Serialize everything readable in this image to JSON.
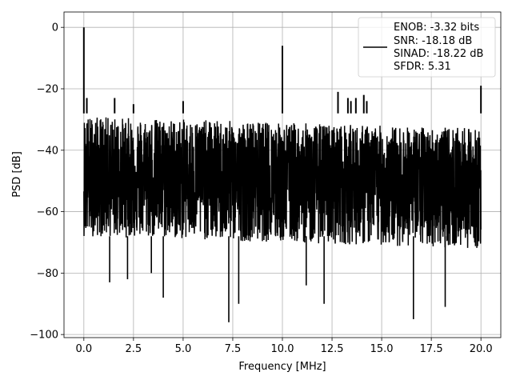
{
  "chart_data": {
    "type": "line",
    "title": "",
    "xlabel": "Frequency [MHz]",
    "ylabel": "PSD [dB]",
    "xlim": [
      -1.0,
      21.0
    ],
    "ylim": [
      -101,
      5
    ],
    "xticks": [
      0.0,
      2.5,
      5.0,
      7.5,
      10.0,
      12.5,
      15.0,
      17.5,
      20.0
    ],
    "xtick_labels": [
      "0.0",
      "2.5",
      "5.0",
      "7.5",
      "10.0",
      "12.5",
      "15.0",
      "17.5",
      "20.0"
    ],
    "yticks": [
      0,
      -20,
      -40,
      -60,
      -80,
      -100
    ],
    "ytick_labels": [
      "0",
      "−20",
      "−40",
      "−60",
      "−80",
      "−100"
    ],
    "grid": true,
    "legend_position": "top-right",
    "legend_lines": [
      "ENOB: -3.32 bits",
      "SNR: -18.18 dB",
      "SINAD: -18.22 dB",
      "SFDR: 5.31"
    ],
    "line_color": "#000000",
    "frequency_range": [
      0.0,
      20.0
    ],
    "noise_floor_peak_db": -28,
    "noise_floor_mean_db": -47,
    "noise_floor_min_db": -68,
    "peaks": [
      {
        "x": 0.0,
        "y": 0
      },
      {
        "x": 0.15,
        "y": -23
      },
      {
        "x": 1.55,
        "y": -23
      },
      {
        "x": 2.5,
        "y": -25
      },
      {
        "x": 5.0,
        "y": -24
      },
      {
        "x": 10.0,
        "y": -6
      },
      {
        "x": 12.8,
        "y": -21
      },
      {
        "x": 13.3,
        "y": -23
      },
      {
        "x": 13.45,
        "y": -24
      },
      {
        "x": 13.7,
        "y": -23
      },
      {
        "x": 14.1,
        "y": -22
      },
      {
        "x": 14.25,
        "y": -24
      },
      {
        "x": 20.0,
        "y": -19
      }
    ],
    "troughs": [
      {
        "x": 1.3,
        "y": -83
      },
      {
        "x": 2.2,
        "y": -82
      },
      {
        "x": 3.4,
        "y": -80
      },
      {
        "x": 4.0,
        "y": -88
      },
      {
        "x": 7.3,
        "y": -96
      },
      {
        "x": 7.8,
        "y": -90
      },
      {
        "x": 11.2,
        "y": -84
      },
      {
        "x": 12.1,
        "y": -90
      },
      {
        "x": 16.6,
        "y": -95
      },
      {
        "x": 18.2,
        "y": -91
      }
    ]
  }
}
